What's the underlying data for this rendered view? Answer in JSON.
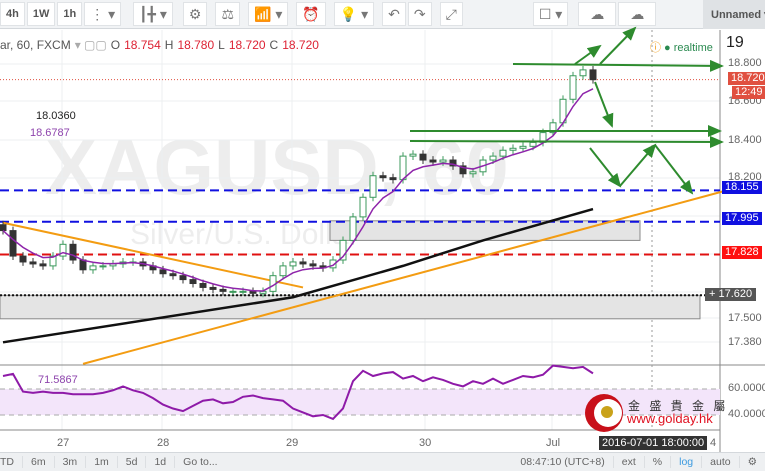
{
  "toolbar": {
    "items": [
      "4h",
      "1W",
      "1h"
    ],
    "unnamed": "Unnamed",
    "icons": [
      "more-icon",
      "chevron-down-icon",
      "candles-icon",
      "gear-icon",
      "compare-icon",
      "indicators-icon",
      "alert-icon",
      "lightbulb-icon",
      "undo-icon",
      "redo-icon",
      "fullscreen-icon",
      "square-icon",
      "cloud-download-icon",
      "cloud-upload-icon"
    ]
  },
  "legend": {
    "symbol": "ar, 60, FXCM",
    "o_label": "O",
    "o": "18.754",
    "h_label": "H",
    "h": "18.780",
    "l_label": "L",
    "l": "18.720",
    "c_label": "C",
    "c": "18.720",
    "realtime": "realtime",
    "ma_long_value": "18.0360",
    "ma_short_value": "18.6787",
    "rsi_value": "71.5867",
    "top_right": "19"
  },
  "watermark": {
    "symbol": "XAGUSD, 60",
    "description": "Silver/U.S. Dollar"
  },
  "logo": {
    "chinese": "金 盛 貴 金 屬",
    "url": "www.golday.hk"
  },
  "price_labels": {
    "last": "18.720",
    "countdown": "12:49",
    "blue1": "18.155",
    "blue2": "17.995",
    "red": "17.828",
    "cross": "17.620"
  },
  "price_ticks": [
    "18.800",
    "18.600",
    "18.400",
    "18.200",
    "17.500",
    "17.380"
  ],
  "rsi_ticks": [
    "60.0000",
    "40.0000"
  ],
  "crosshair_label": "2016-07-01 18:00:00",
  "bottom_bar": {
    "ranges": [
      "TD",
      "6m",
      "3m",
      "1m",
      "5d",
      "1d",
      "Go to..."
    ],
    "time": "08:47:10 (UTC+8)",
    "ext": "ext",
    "percent": "%",
    "log": "log",
    "auto": "auto"
  },
  "colors": {
    "up": "#3c9a5c",
    "down": "#333333",
    "ma_short": "#8e24aa",
    "ma_long": "#111111",
    "trend": "#f39c12",
    "blue": "#1010e0",
    "red": "#e01010",
    "arrows": "#2e8b2e",
    "rsi": "#8e1aa8"
  },
  "chart_data": {
    "type": "candlestick",
    "symbol": "XAGUSD",
    "interval": "60",
    "x_ticks": [
      {
        "label": "27",
        "bar": 6
      },
      {
        "label": "28",
        "bar": 16
      },
      {
        "label": "29",
        "bar": 29
      },
      {
        "label": "30",
        "bar": 42
      },
      {
        "label": "Jul",
        "bar": 55
      }
    ],
    "closes": [
      17.95,
      17.82,
      17.79,
      17.78,
      17.77,
      17.82,
      17.88,
      17.8,
      17.75,
      17.77,
      17.77,
      17.78,
      17.79,
      17.79,
      17.77,
      17.75,
      17.73,
      17.72,
      17.7,
      17.68,
      17.66,
      17.65,
      17.64,
      17.64,
      17.64,
      17.63,
      17.64,
      17.72,
      17.77,
      17.79,
      17.78,
      17.77,
      17.76,
      17.8,
      17.9,
      18.02,
      18.12,
      18.23,
      18.22,
      18.21,
      18.33,
      18.34,
      18.31,
      18.3,
      18.31,
      18.28,
      18.24,
      18.25,
      18.31,
      18.33,
      18.36,
      18.37,
      18.38,
      18.4,
      18.45,
      18.5,
      18.62,
      18.74,
      18.77,
      18.72
    ],
    "ma_long_points": [
      [
        0,
        17.38
      ],
      [
        29,
        17.61
      ],
      [
        40,
        17.77
      ],
      [
        48,
        17.9
      ],
      [
        59,
        18.06
      ]
    ],
    "trendlines": [
      {
        "from": [
          0,
          17.99
        ],
        "to": [
          30,
          17.66
        ]
      },
      {
        "from": [
          8,
          17.27
        ],
        "to": [
          72,
          18.15
        ]
      }
    ],
    "horizontal_levels": [
      {
        "value": 18.155,
        "style": "blue-dashed"
      },
      {
        "value": 17.995,
        "style": "blue-dashed"
      },
      {
        "value": 17.828,
        "style": "red-dashed"
      },
      {
        "value": 17.62,
        "style": "black-dotted"
      }
    ],
    "zones": [
      {
        "from_bar": 33,
        "to_bar": 64,
        "top": 18.0,
        "bottom": 17.9
      },
      {
        "from_bar": 0,
        "to_bar": 70,
        "top": 17.62,
        "bottom": 17.5
      }
    ],
    "y_range": [
      17.3,
      18.9
    ],
    "rsi": {
      "values": [
        70,
        71.6,
        58,
        57,
        58,
        57,
        57,
        56,
        56,
        56,
        57,
        59,
        62,
        59,
        57,
        53,
        48,
        45,
        43,
        47,
        51,
        52,
        49,
        50,
        54,
        55,
        53,
        52,
        51,
        45,
        42,
        39,
        40,
        37,
        45,
        66,
        74,
        70,
        72,
        73,
        68,
        70,
        66,
        69,
        67,
        64,
        62,
        66,
        64,
        68,
        64,
        67,
        70,
        69,
        71,
        78,
        77,
        76,
        77,
        72
      ],
      "band": [
        40,
        60
      ]
    }
  }
}
